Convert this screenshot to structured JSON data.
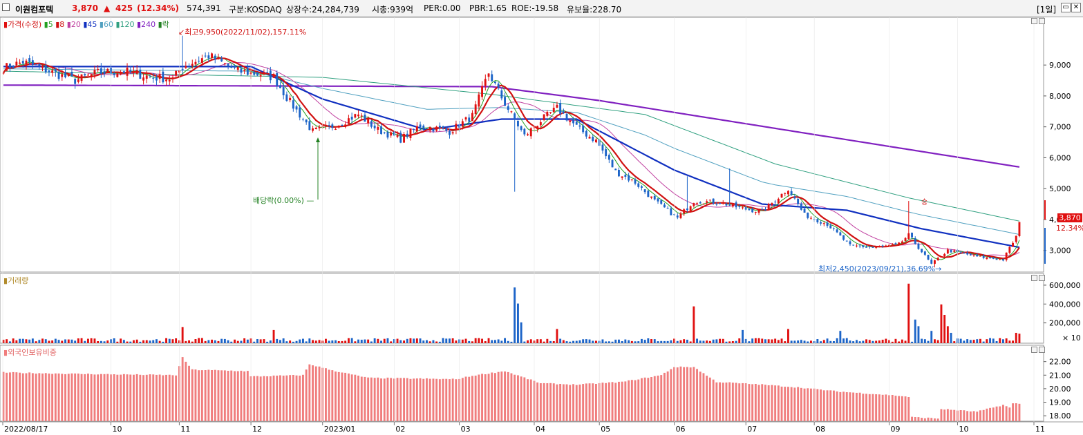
{
  "header": {
    "stock_name": "이원컴포텍",
    "price": "3,870",
    "change_arrow": "▲",
    "change": "425",
    "change_pct": "(12.34%)",
    "volume": "574,391",
    "market": "구분:KOSDAQ",
    "shares": "상장수:24,284,739",
    "market_cap": "시총:939억",
    "per": "PER:0.00",
    "pbr": "PBR:1.65",
    "roe": "ROE:-19.58",
    "float": "유보율:228.70",
    "period": "[1일]"
  },
  "legend": {
    "price": "가격(수정)",
    "ma5": "5",
    "ma8": "8",
    "ma20": "20",
    "ma45": "45",
    "ma60": "60",
    "ma120": "120",
    "ma240": "240",
    "event": "락",
    "volume": "거래량",
    "foreign": "외국인보유비중"
  },
  "annotations": {
    "high": "최고9,950(2022/11/02),157.11%",
    "low": "최저2,450(2023/09/21),36.69%",
    "dividend": "배당락(0.00%)",
    "badge_price": "3,870",
    "badge_pct": "12.34%",
    "vol_scale": "× 10",
    "marker": "승"
  },
  "chart_data": [
    {
      "type": "candlestick",
      "title": "가격(수정)",
      "ylim": [
        2300,
        10300
      ],
      "y_ticks": [
        3000,
        4000,
        5000,
        6000,
        7000,
        8000,
        9000
      ],
      "y_tick_labels": [
        "3,000",
        "4,000",
        "5,000",
        "6,000",
        "7,000",
        "8,000",
        "9,000"
      ],
      "x_tick_labels": [
        "2022/08/17",
        "10",
        "11",
        "12",
        "2023/01",
        "02",
        "03",
        "04",
        "05",
        "06",
        "07",
        "08",
        "09",
        "10",
        "11"
      ],
      "close_anchors": [
        [
          "2022/08/17",
          8900
        ],
        [
          "2022/08/25",
          9100
        ],
        [
          "2022/09/06",
          8800
        ],
        [
          "2022/09/16",
          8500
        ],
        [
          "2022/09/27",
          8750
        ],
        [
          "2022/10/07",
          8800
        ],
        [
          "2022/10/20",
          8600
        ],
        [
          "2022/10/28",
          8550
        ],
        [
          "2022/11/02",
          8950
        ],
        [
          "2022/11/14",
          9300
        ],
        [
          "2022/11/25",
          8800
        ],
        [
          "2022/12/06",
          8700
        ],
        [
          "2022/12/12",
          8600
        ],
        [
          "2022/12/19",
          7800
        ],
        [
          "2022/12/28",
          6850
        ],
        [
          "2023/01/06",
          7050
        ],
        [
          "2023/01/17",
          7400
        ],
        [
          "2023/01/25",
          6900
        ],
        [
          "2023/02/03",
          6600
        ],
        [
          "2023/02/13",
          7050
        ],
        [
          "2023/02/24",
          6850
        ],
        [
          "2023/03/07",
          7350
        ],
        [
          "2023/03/14",
          8750
        ],
        [
          "2023/03/21",
          7750
        ],
        [
          "2023/03/29",
          6700
        ],
        [
          "2023/04/05",
          7200
        ],
        [
          "2023/04/12",
          7600
        ],
        [
          "2023/04/21",
          6900
        ],
        [
          "2023/04/28",
          6550
        ],
        [
          "2023/05/08",
          5550
        ],
        [
          "2023/05/16",
          5200
        ],
        [
          "2023/05/24",
          4600
        ],
        [
          "2023/06/02",
          4050
        ],
        [
          "2023/06/09",
          4600
        ],
        [
          "2023/06/21",
          4550
        ],
        [
          "2023/06/30",
          4350
        ],
        [
          "2023/07/10",
          4250
        ],
        [
          "2023/07/20",
          5000
        ],
        [
          "2023/07/27",
          4150
        ],
        [
          "2023/08/07",
          3850
        ],
        [
          "2023/08/16",
          3150
        ],
        [
          "2023/08/28",
          3100
        ],
        [
          "2023/09/06",
          3200
        ],
        [
          "2023/09/11",
          3500
        ],
        [
          "2023/09/20",
          2550
        ],
        [
          "2023/09/27",
          3000
        ],
        [
          "2023/10/10",
          2800
        ],
        [
          "2023/10/20",
          2700
        ],
        [
          "2023/10/26",
          3450
        ],
        [
          "2023/10/27",
          3870
        ]
      ],
      "moving_averages": {
        "ma240": [
          [
            "2022/08/17",
            8350
          ],
          [
            "2023/03/15",
            8300
          ],
          [
            "2023/05/01",
            7850
          ],
          [
            "2023/10/27",
            5700
          ]
        ],
        "ma120": [
          [
            "2022/08/17",
            8800
          ],
          [
            "2023/01/01",
            8600
          ],
          [
            "2023/03/15",
            8050
          ],
          [
            "2023/05/20",
            7400
          ],
          [
            "2023/07/15",
            5800
          ],
          [
            "2023/09/10",
            4700
          ],
          [
            "2023/10/27",
            3950
          ]
        ],
        "ma45": [
          [
            "2022/08/17",
            8950
          ],
          [
            "2022/12/01",
            8950
          ],
          [
            "2023/01/01",
            7900
          ],
          [
            "2023/02/15",
            6900
          ],
          [
            "2023/03/20",
            7250
          ],
          [
            "2023/04/20",
            7250
          ],
          [
            "2023/06/01",
            5600
          ],
          [
            "2023/07/10",
            4500
          ],
          [
            "2023/08/15",
            4300
          ],
          [
            "2023/09/15",
            3700
          ],
          [
            "2023/10/27",
            3100
          ]
        ]
      },
      "series": [
        {
          "name": "가격(수정)",
          "color": "#d11111"
        },
        {
          "name": "5",
          "color": "#22a022"
        },
        {
          "name": "8",
          "color": "#d11111"
        },
        {
          "name": "20",
          "color": "#c040a0"
        },
        {
          "name": "45",
          "color": "#1030c0"
        },
        {
          "name": "60",
          "color": "#50a0c0"
        },
        {
          "name": "120",
          "color": "#30a080"
        },
        {
          "name": "240",
          "color": "#8020c0"
        }
      ],
      "high": {
        "date": "2022/11/02",
        "value": 9950
      },
      "low": {
        "date": "2023/09/21",
        "value": 2450
      }
    },
    {
      "type": "bar",
      "title": "거래량",
      "unit_note": "× 10",
      "ylim": [
        0,
        68000
      ],
      "y_ticks": [
        200000,
        400000,
        600000
      ],
      "y_tick_labels": [
        "200,000",
        "400,000",
        "600,000"
      ],
      "spikes": [
        [
          "2022/11/02",
          170000
        ],
        [
          "2022/12/12",
          140000
        ],
        [
          "2023/03/24",
          590000
        ],
        [
          "2023/03/27",
          420000
        ],
        [
          "2023/03/28",
          220000
        ],
        [
          "2023/04/12",
          150000
        ],
        [
          "2023/06/09",
          390000
        ],
        [
          "2023/06/30",
          140000
        ],
        [
          "2023/07/20",
          150000
        ],
        [
          "2023/08/11",
          130000
        ],
        [
          "2023/09/11",
          630000
        ],
        [
          "2023/09/13",
          250000
        ],
        [
          "2023/09/14",
          180000
        ],
        [
          "2023/09/20",
          130000
        ],
        [
          "2023/09/25",
          410000
        ],
        [
          "2023/09/26",
          300000
        ],
        [
          "2023/09/27",
          180000
        ],
        [
          "2023/09/28",
          110000
        ],
        [
          "2023/10/26",
          110000
        ],
        [
          "2023/10/27",
          100000
        ]
      ],
      "baseline": 30000
    },
    {
      "type": "bar",
      "title": "외국인보유비중",
      "ylim": [
        17.6,
        22.8
      ],
      "y_ticks": [
        18,
        19,
        20,
        21,
        22
      ],
      "y_tick_labels": [
        "18.00",
        "19.00",
        "20.00",
        "21.00",
        "22.00"
      ],
      "anchors": [
        [
          "2022/08/17",
          21.2
        ],
        [
          "2022/09/15",
          21.1
        ],
        [
          "2022/10/31",
          21.0
        ],
        [
          "2022/11/02",
          22.3
        ],
        [
          "2022/11/07",
          21.4
        ],
        [
          "2022/11/30",
          21.3
        ],
        [
          "2022/12/01",
          20.9
        ],
        [
          "2022/12/23",
          21.0
        ],
        [
          "2022/12/27",
          21.8
        ],
        [
          "2023/01/06",
          21.3
        ],
        [
          "2023/01/20",
          20.8
        ],
        [
          "2023/02/28",
          20.7
        ],
        [
          "2023/03/08",
          21.0
        ],
        [
          "2023/03/21",
          21.3
        ],
        [
          "2023/04/05",
          20.4
        ],
        [
          "2023/04/20",
          20.3
        ],
        [
          "2023/05/10",
          20.5
        ],
        [
          "2023/05/26",
          21.0
        ],
        [
          "2023/06/01",
          21.6
        ],
        [
          "2023/06/09",
          21.6
        ],
        [
          "2023/06/20",
          20.5
        ],
        [
          "2023/07/10",
          20.3
        ],
        [
          "2023/07/25",
          20.1
        ],
        [
          "2023/08/10",
          19.8
        ],
        [
          "2023/09/05",
          19.5
        ],
        [
          "2023/09/11",
          19.4
        ],
        [
          "2023/09/12",
          17.9
        ],
        [
          "2023/09/22",
          17.8
        ],
        [
          "2023/09/25",
          18.5
        ],
        [
          "2023/10/10",
          18.3
        ],
        [
          "2023/10/20",
          18.8
        ],
        [
          "2023/10/24",
          18.6
        ],
        [
          "2023/10/25",
          18.9
        ],
        [
          "2023/10/27",
          18.9
        ]
      ]
    }
  ],
  "colors": {
    "up": "#e01010",
    "down": "#1c64c8",
    "foreign_bar": "#f07d7d",
    "grid_frame": "#9a9a9a"
  }
}
